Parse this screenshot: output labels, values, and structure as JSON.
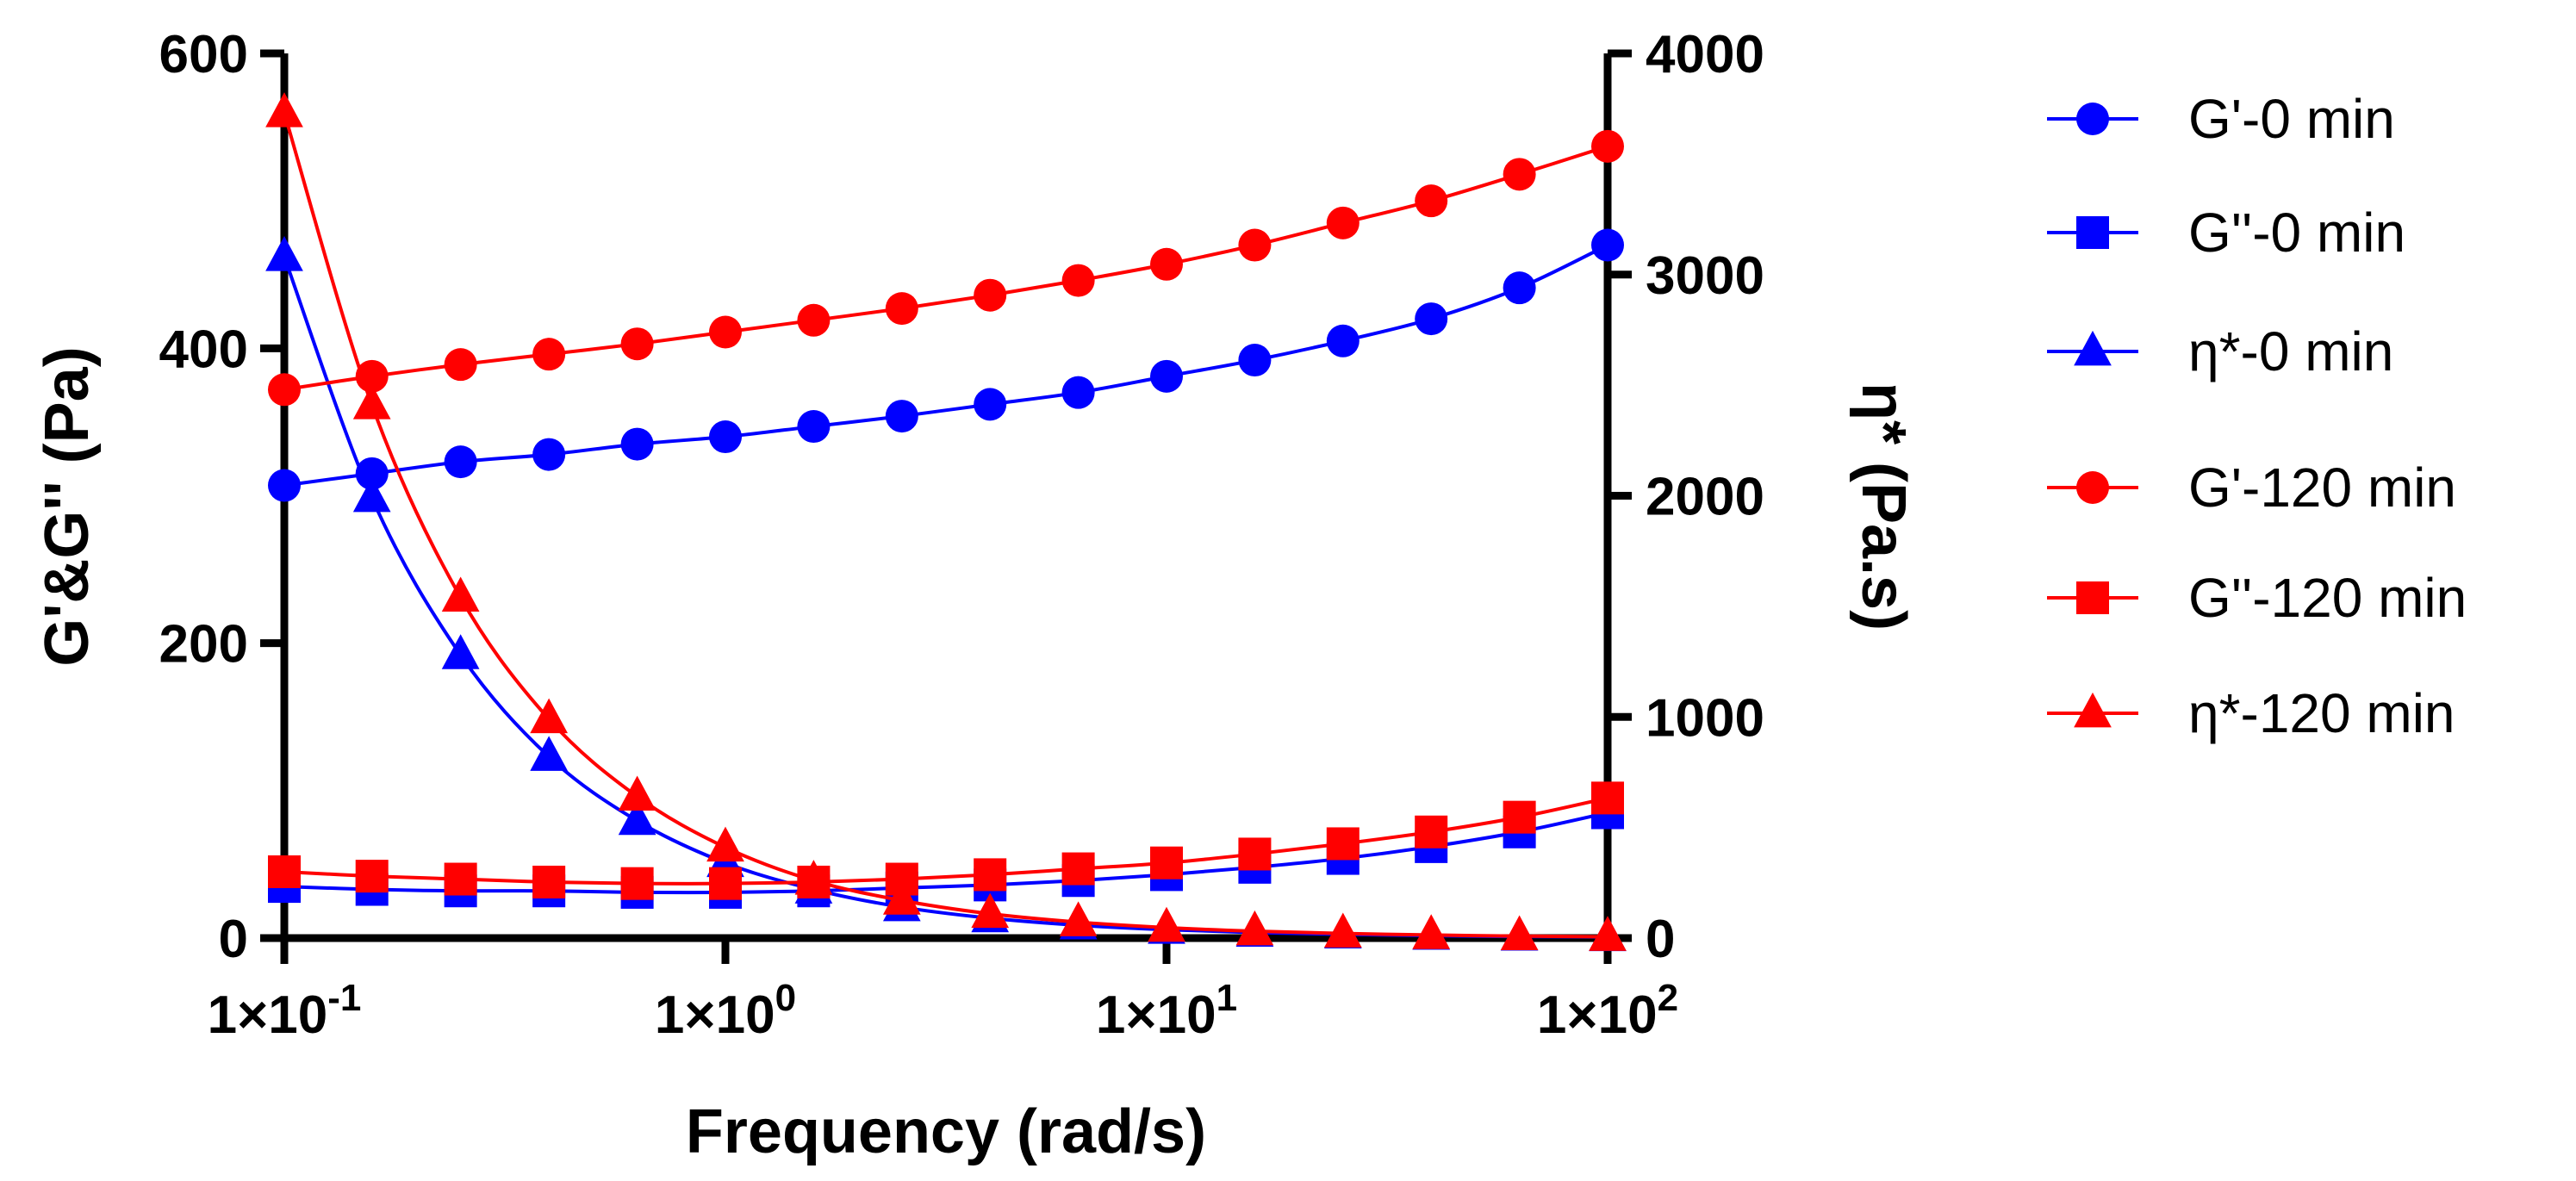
{
  "chart_data": {
    "type": "line",
    "title": "",
    "xlabel": "Frequency (rad/s)",
    "ylabel": "G'&G'' (Pa)",
    "y2label": "η* (Pa.s)",
    "xscale": "log",
    "xlim": [
      0.1,
      100
    ],
    "ylim": [
      0,
      600
    ],
    "y2lim": [
      0,
      4000
    ],
    "x_ticks": [
      {
        "value": 0.1,
        "label": "1×10",
        "exp": "-1"
      },
      {
        "value": 1,
        "label": "1×10",
        "exp": "0"
      },
      {
        "value": 10,
        "label": "1×10",
        "exp": "1"
      },
      {
        "value": 100,
        "label": "1×10",
        "exp": "2"
      }
    ],
    "y_ticks": [
      0,
      200,
      400,
      600
    ],
    "y2_ticks": [
      0,
      1000,
      2000,
      3000,
      4000
    ],
    "legend_position": "right",
    "x": [
      0.1,
      0.158,
      0.251,
      0.398,
      0.631,
      1.0,
      1.585,
      2.512,
      3.981,
      6.31,
      10.0,
      15.85,
      25.12,
      39.81,
      63.1,
      100.0
    ],
    "series": [
      {
        "name": "G'-0 min",
        "axis": "left",
        "color": "#0000ff",
        "marker": "circle",
        "values": [
          307,
          315,
          323,
          328,
          335,
          340,
          347,
          354,
          362,
          370,
          381,
          392,
          405,
          420,
          441,
          470
        ]
      },
      {
        "name": "G''-0 min",
        "axis": "left",
        "color": "#0000ff",
        "marker": "square",
        "values": [
          35,
          33,
          32,
          32,
          31,
          31,
          32,
          34,
          36,
          39,
          43,
          48,
          54,
          62,
          72,
          85
        ]
      },
      {
        "name": "η*-0 min",
        "axis": "right",
        "color": "#0000ff",
        "marker": "triangle",
        "values": [
          3080,
          1990,
          1280,
          820,
          530,
          340,
          220,
          140,
          90,
          58,
          38,
          25,
          17,
          11,
          7,
          5
        ]
      },
      {
        "name": "G'-120 min",
        "axis": "left",
        "color": "#ff0000",
        "marker": "circle",
        "values": [
          372,
          381,
          389,
          396,
          403,
          411,
          419,
          427,
          436,
          446,
          457,
          470,
          485,
          500,
          518,
          537
        ]
      },
      {
        "name": "G''-120 min",
        "axis": "left",
        "color": "#ff0000",
        "marker": "square",
        "values": [
          45,
          42,
          40,
          38,
          37,
          37,
          38,
          40,
          43,
          47,
          51,
          57,
          64,
          72,
          82,
          95
        ]
      },
      {
        "name": "η*-120 min",
        "axis": "right",
        "color": "#ff0000",
        "marker": "triangle",
        "values": [
          3730,
          2410,
          1540,
          990,
          640,
          410,
          260,
          170,
          110,
          72,
          47,
          31,
          21,
          14,
          9,
          6
        ]
      }
    ]
  }
}
